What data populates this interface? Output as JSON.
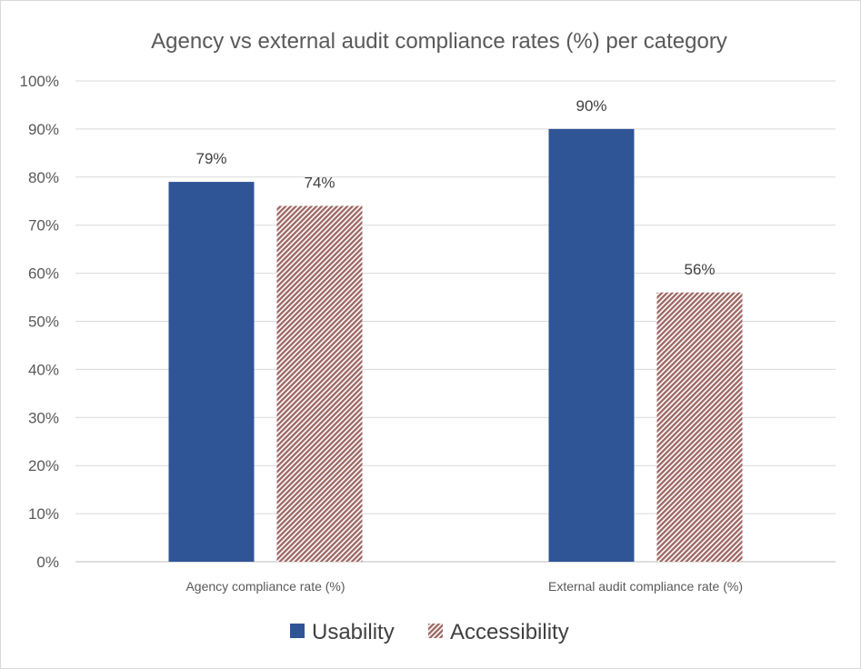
{
  "chart_data": {
    "type": "bar",
    "title": "Agency vs external audit compliance rates (%) per category",
    "categories": [
      "Agency compliance rate (%)",
      "External audit compliance rate (%)"
    ],
    "series": [
      {
        "name": "Usability",
        "values": [
          79,
          90
        ],
        "labels": [
          "79%",
          "90%"
        ],
        "color": "#2f5597",
        "pattern": "solid"
      },
      {
        "name": "Accessibility",
        "values": [
          74,
          56
        ],
        "labels": [
          "74%",
          "56%"
        ],
        "color": "#9e6a66",
        "pattern": "diagonal-hatch"
      }
    ],
    "ylim": [
      0,
      100
    ],
    "yticks": [
      0,
      10,
      20,
      30,
      40,
      50,
      60,
      70,
      80,
      90,
      100
    ],
    "ytick_labels": [
      "0%",
      "10%",
      "20%",
      "30%",
      "40%",
      "50%",
      "60%",
      "70%",
      "80%",
      "90%",
      "100%"
    ],
    "grid": true,
    "legend_position": "bottom"
  }
}
